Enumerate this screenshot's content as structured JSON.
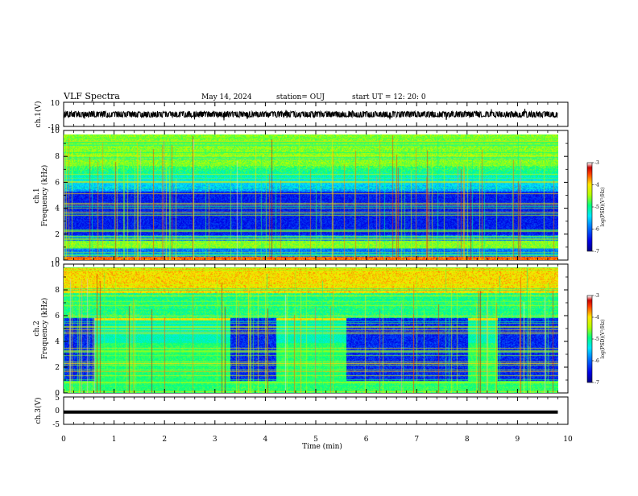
{
  "header": {
    "title": "VLF Spectra",
    "date": "May 14, 2024",
    "station": "station= OUJ",
    "start": "start  UT  =   12: 20: 0"
  },
  "chart_data": [
    {
      "type": "line",
      "name": "ch1-waveform",
      "ylabel": "ch.1(V)",
      "ylim": [
        -10,
        10
      ],
      "yticks": [
        "10",
        "-10"
      ],
      "xlim": [
        0,
        10
      ],
      "x_extent": [
        0,
        9.8
      ],
      "y_band": [
        -2,
        2
      ]
    },
    {
      "type": "heatmap",
      "name": "ch1-spectrogram",
      "ylabel_top": "ch.1",
      "ylabel": "Frequency (kHz)",
      "ylim": [
        0,
        10
      ],
      "yticks": [
        "0",
        "2",
        "4",
        "6",
        "8",
        "10"
      ],
      "xlim": [
        0,
        10
      ],
      "colorbar": {
        "label": "log(PSD)(V²/Hz)",
        "range": [
          -7,
          -3
        ],
        "ticks": [
          "-3",
          "-4",
          "-5",
          "-6",
          "-7"
        ]
      }
    },
    {
      "type": "heatmap",
      "name": "ch2-spectrogram",
      "ylabel_top": "ch.2",
      "ylabel": "Frequency (kHz)",
      "ylim": [
        0,
        10
      ],
      "yticks": [
        "0",
        "2",
        "4",
        "6",
        "8",
        "10"
      ],
      "xlim": [
        0,
        10
      ],
      "interference_intervals_min": [
        [
          0.6,
          3.3
        ],
        [
          4.2,
          5.6
        ],
        [
          8.0,
          8.6
        ]
      ],
      "colorbar": {
        "label": "log(PSD)(V²/Hz)",
        "range": [
          -7,
          -3
        ],
        "ticks": [
          "-3",
          "-4",
          "-5",
          "-6",
          "-7"
        ]
      }
    },
    {
      "type": "line",
      "name": "ch3-waveform",
      "ylabel": "ch.3(V)",
      "ylim": [
        -5,
        5
      ],
      "yticks": [
        "5",
        "0",
        "-5"
      ],
      "xlim": [
        0,
        10
      ],
      "x_extent": [
        0,
        9.8
      ],
      "y_value": -0.5
    }
  ],
  "xaxis": {
    "label": "Time (min)",
    "ticks": [
      "0",
      "1",
      "2",
      "3",
      "4",
      "5",
      "6",
      "7",
      "8",
      "9",
      "10"
    ]
  },
  "colors": {
    "low": "#00008b",
    "mid": "#00ff80",
    "high": "#ff0000",
    "top": "#ffffff"
  }
}
